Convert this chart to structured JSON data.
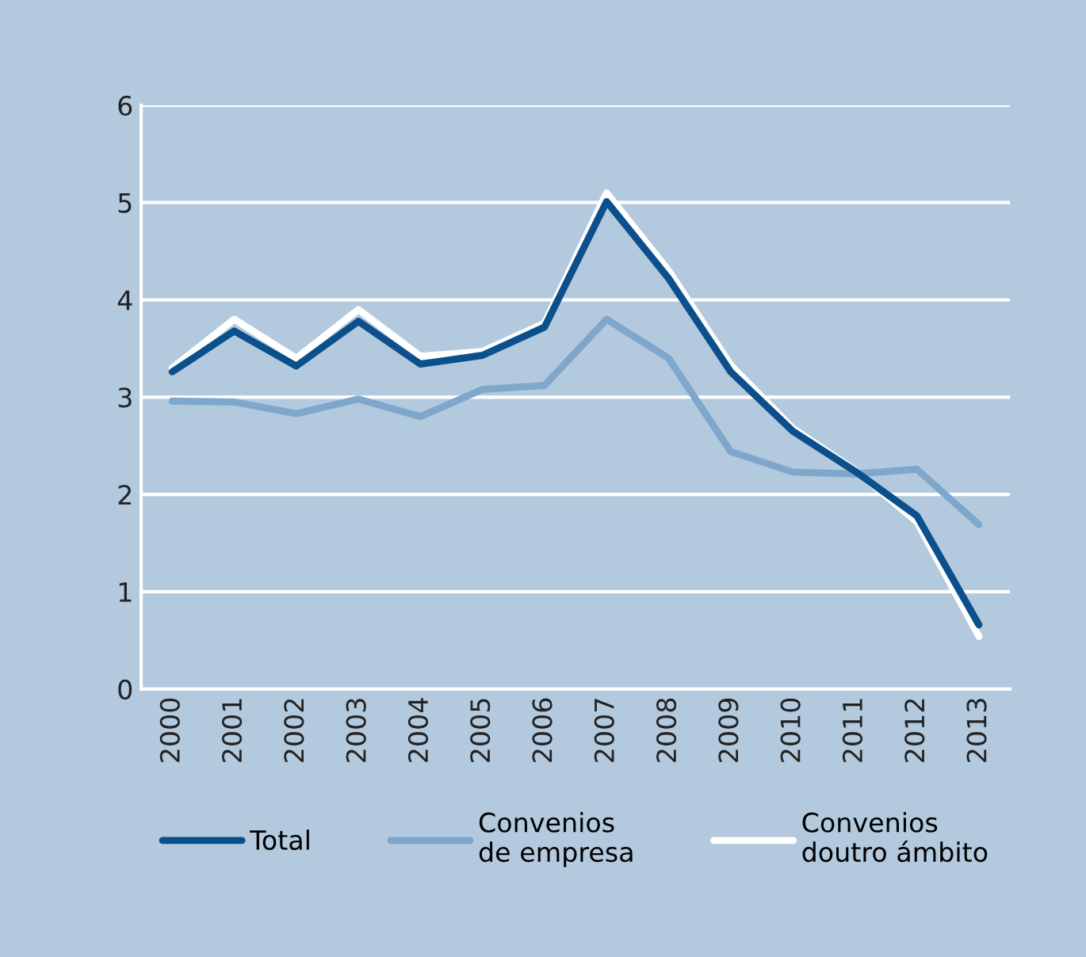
{
  "chart_data": {
    "type": "line",
    "categories": [
      "2000",
      "2001",
      "2002",
      "2003",
      "2004",
      "2005",
      "2006",
      "2007",
      "2008",
      "2009",
      "2010",
      "2011",
      "2012",
      "2013"
    ],
    "series": [
      {
        "name": "Convenios\ndoutro ámbito",
        "color": "#ffffff",
        "values": [
          3.3,
          3.8,
          3.4,
          3.9,
          3.42,
          3.47,
          3.76,
          5.1,
          4.3,
          3.33,
          2.68,
          2.25,
          1.72,
          0.54
        ]
      },
      {
        "name": "Convenios\nde empresa",
        "color": "#7fa7cb",
        "values": [
          2.96,
          2.95,
          2.83,
          2.98,
          2.8,
          3.08,
          3.12,
          3.8,
          3.4,
          2.44,
          2.23,
          2.21,
          2.26,
          1.69
        ]
      },
      {
        "name": "Total",
        "color": "#0b4f8c",
        "values": [
          3.26,
          3.68,
          3.32,
          3.78,
          3.34,
          3.43,
          3.72,
          5.01,
          4.22,
          3.26,
          2.65,
          2.24,
          1.78,
          0.66
        ]
      }
    ],
    "ylim": [
      0,
      6
    ],
    "yticks": [
      0,
      1,
      2,
      3,
      4,
      5,
      6
    ],
    "grid": "y",
    "legend": "bottom",
    "marker": "none",
    "line_style": "solid"
  }
}
